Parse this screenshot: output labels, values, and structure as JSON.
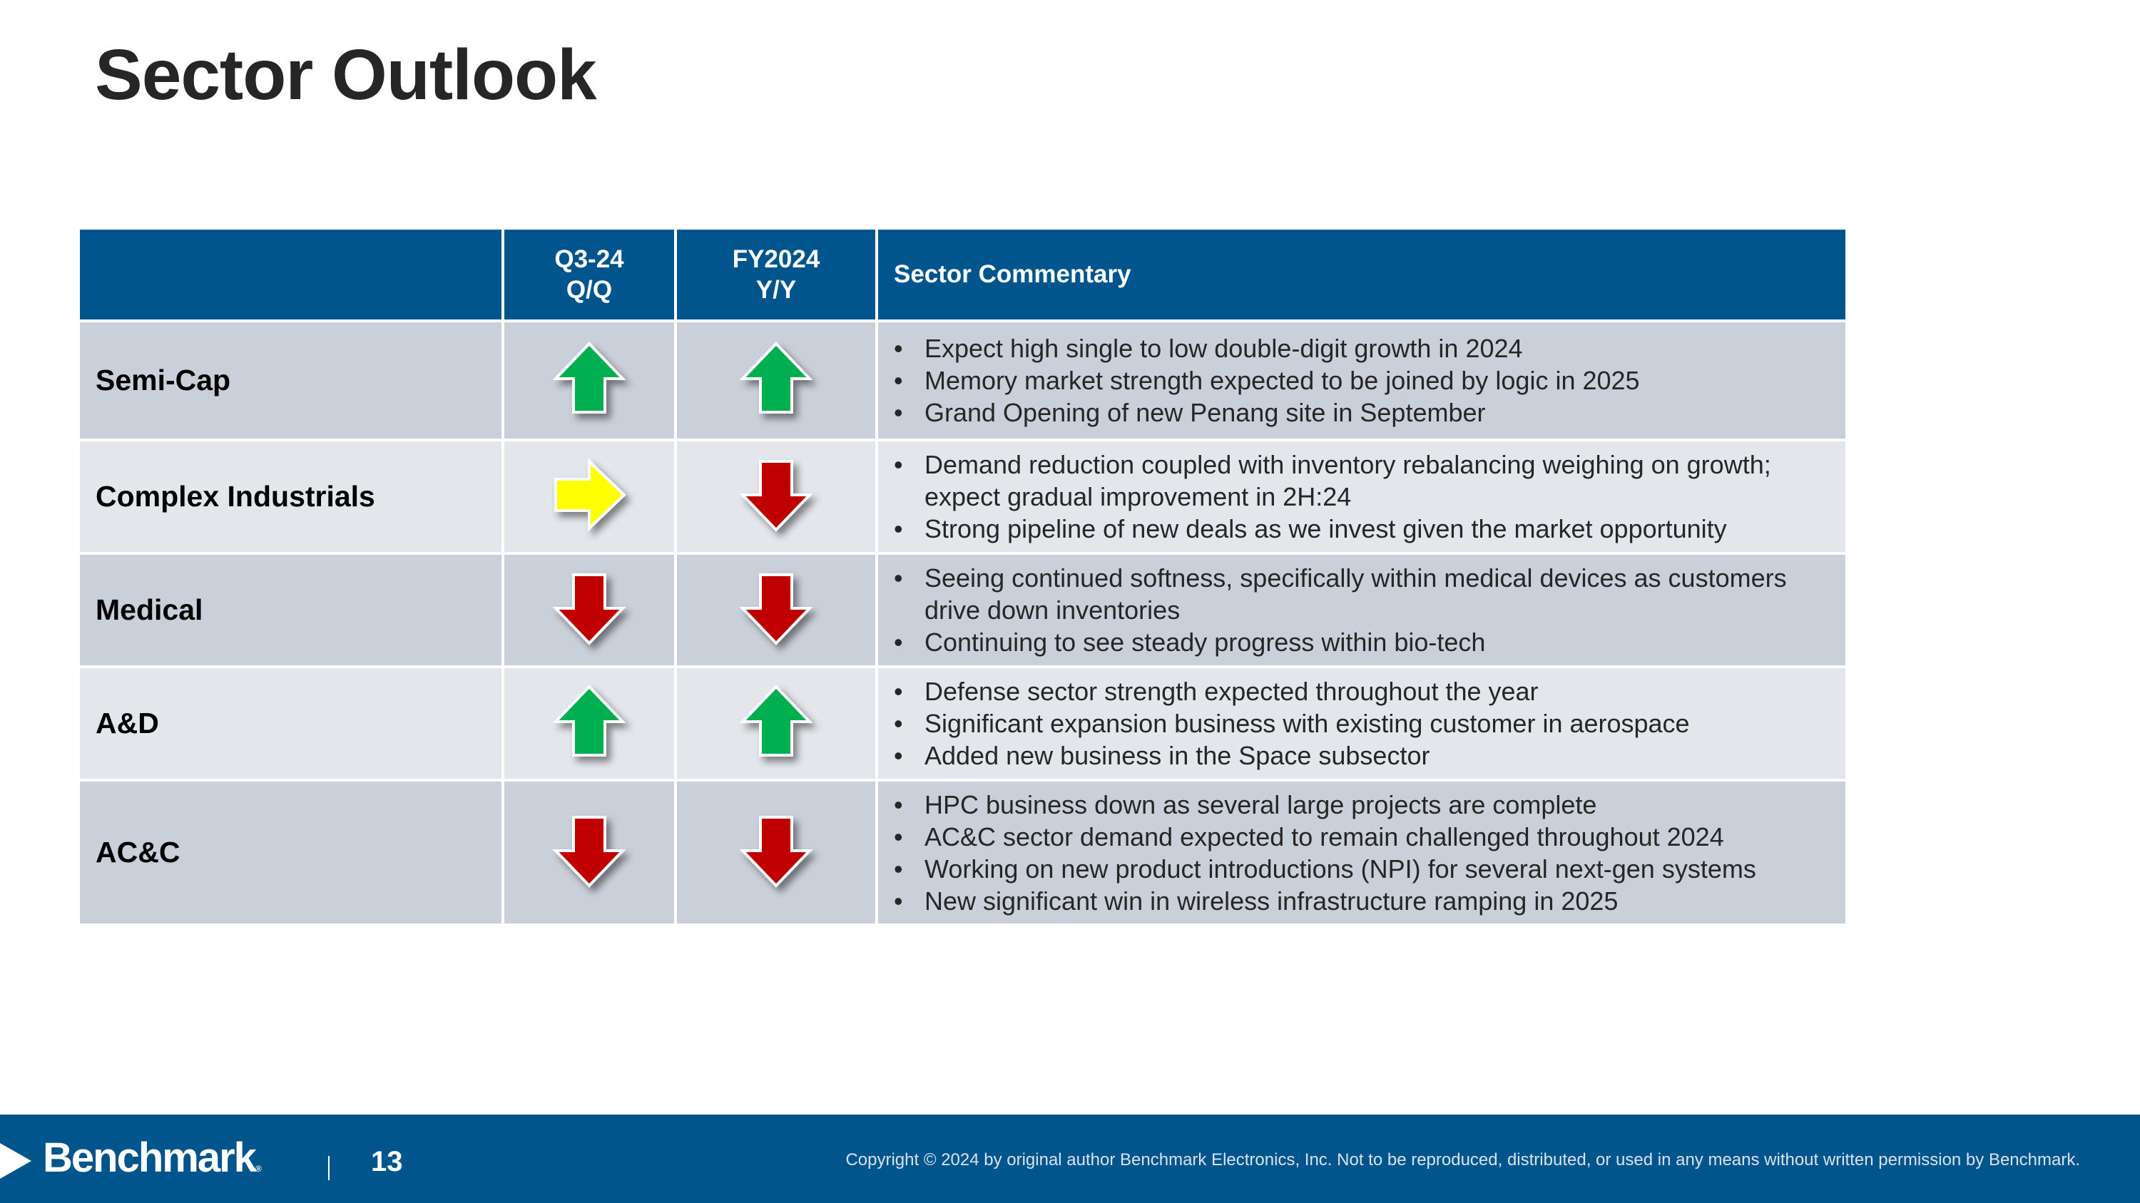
{
  "slide": {
    "title": "Sector Outlook",
    "page_number": "13"
  },
  "table": {
    "headers": {
      "sector": "",
      "q3_line1": "Q3-24",
      "q3_line2": "Q/Q",
      "fy_line1": "FY2024",
      "fy_line2": "Y/Y",
      "commentary": "Sector Commentary"
    },
    "rows": [
      {
        "sector": "Semi-Cap",
        "q3_qq": "up",
        "fy2024_yy": "up",
        "commentary": [
          "Expect high single to low double-digit growth in 2024",
          "Memory market strength expected to be joined by logic in 2025",
          "Grand Opening of new Penang site in September"
        ]
      },
      {
        "sector": "Complex Industrials",
        "q3_qq": "flat",
        "fy2024_yy": "down",
        "commentary": [
          "Demand reduction coupled with inventory rebalancing weighing on growth; expect gradual improvement in 2H:24",
          "Strong pipeline of new deals as we invest given the market opportunity"
        ]
      },
      {
        "sector": "Medical",
        "q3_qq": "down",
        "fy2024_yy": "down",
        "commentary": [
          "Seeing continued softness, specifically within medical devices as customers drive down inventories",
          "Continuing to see steady progress within bio-tech"
        ]
      },
      {
        "sector": "A&D",
        "q3_qq": "up",
        "fy2024_yy": "up",
        "commentary": [
          "Defense sector strength expected throughout the year",
          "Significant expansion business with existing customer in aerospace",
          "Added new business in the Space subsector"
        ]
      },
      {
        "sector": "AC&C",
        "q3_qq": "down",
        "fy2024_yy": "down",
        "commentary": [
          "HPC business down as several large projects are complete",
          "AC&C sector demand expected to remain challenged throughout 2024",
          "Working on new product introductions (NPI) for several next-gen systems",
          "New significant win in wireless infrastructure ramping in 2025"
        ]
      }
    ]
  },
  "arrow_colors": {
    "up": "#00B050",
    "flat": "#FFFF00",
    "down": "#C00000"
  },
  "footer": {
    "logo_text": "Benchmark",
    "logo_reg": "®",
    "copyright": "Copyright © 2024 by original author Benchmark Electronics, Inc. Not to be reproduced, distributed, or used in any means without written permission by Benchmark."
  }
}
